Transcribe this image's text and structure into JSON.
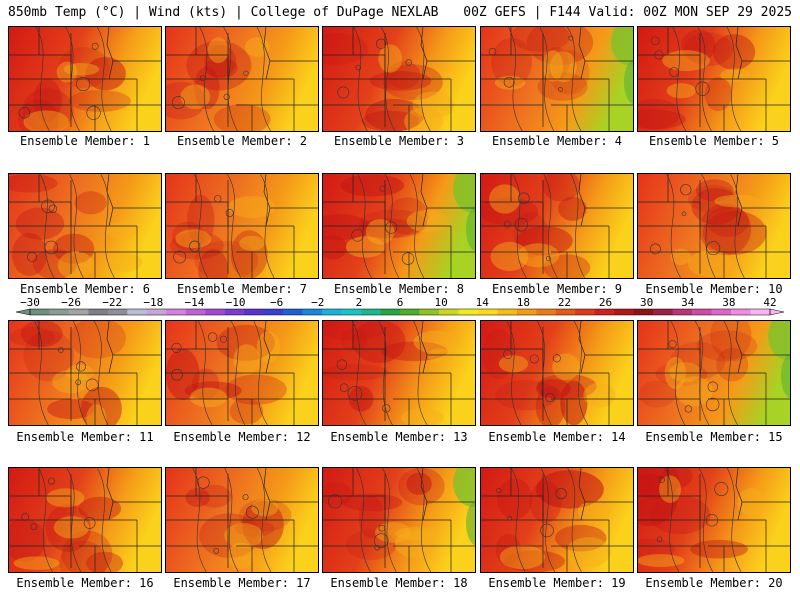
{
  "header": {
    "left": "850mb Temp (°C) | Wind (kts) | College of DuPage NEXLAB",
    "right": "00Z GEFS | F144 Valid: 00Z MON SEP 29 2025"
  },
  "members": [
    {
      "label": "Ensemble Member: 1",
      "warm": 0.85,
      "cool_east": 0.1
    },
    {
      "label": "Ensemble Member: 2",
      "warm": 0.8,
      "cool_east": 0.2
    },
    {
      "label": "Ensemble Member: 3",
      "warm": 0.85,
      "cool_east": 0.15
    },
    {
      "label": "Ensemble Member: 4",
      "warm": 0.55,
      "cool_east": 0.8
    },
    {
      "label": "Ensemble Member: 5",
      "warm": 0.9,
      "cool_east": 0.2
    },
    {
      "label": "Ensemble Member: 6",
      "warm": 0.75,
      "cool_east": 0.3
    },
    {
      "label": "Ensemble Member: 7",
      "warm": 0.65,
      "cool_east": 0.45
    },
    {
      "label": "Ensemble Member: 8",
      "warm": 0.9,
      "cool_east": 0.75
    },
    {
      "label": "Ensemble Member: 9",
      "warm": 0.85,
      "cool_east": 0.3
    },
    {
      "label": "Ensemble Member: 10",
      "warm": 0.7,
      "cool_east": 0.4
    },
    {
      "label": "Ensemble Member: 11",
      "warm": 0.8,
      "cool_east": 0.4
    },
    {
      "label": "Ensemble Member: 12",
      "warm": 0.8,
      "cool_east": 0.35
    },
    {
      "label": "Ensemble Member: 13",
      "warm": 0.85,
      "cool_east": 0.35
    },
    {
      "label": "Ensemble Member: 14",
      "warm": 0.9,
      "cool_east": 0.3
    },
    {
      "label": "Ensemble Member: 15",
      "warm": 0.7,
      "cool_east": 0.85
    },
    {
      "label": "Ensemble Member: 16",
      "warm": 0.85,
      "cool_east": 0.3
    },
    {
      "label": "Ensemble Member: 17",
      "warm": 0.8,
      "cool_east": 0.3
    },
    {
      "label": "Ensemble Member: 18",
      "warm": 0.9,
      "cool_east": 0.6
    },
    {
      "label": "Ensemble Member: 19",
      "warm": 0.95,
      "cool_east": 0.15
    },
    {
      "label": "Ensemble Member: 20",
      "warm": 0.95,
      "cool_east": 0.1
    }
  ],
  "colorbar": {
    "tick_labels": [
      "−30",
      "−26",
      "−22",
      "−18",
      "−14",
      "−10",
      "−6",
      "−2",
      "2",
      "6",
      "10",
      "14",
      "18",
      "22",
      "26",
      "30",
      "34",
      "38",
      "42"
    ],
    "colors": [
      "#6f8f7f",
      "#8d9b94",
      "#a3a3a3",
      "#7f7f87",
      "#8e8e98",
      "#b9bdd8",
      "#c9a4d9",
      "#d67fe0",
      "#c35fd6",
      "#a347d3",
      "#7c3bd0",
      "#5a32cc",
      "#3b3fd1",
      "#1f5fd6",
      "#1a86d9",
      "#18b2de",
      "#19c4c9",
      "#1bb88a",
      "#27a544",
      "#4fae27",
      "#8fc321",
      "#c9d81f",
      "#f0ec1c",
      "#fddb1b",
      "#fbbb16",
      "#f59a14",
      "#ee7a14",
      "#e65718",
      "#dd3a1c",
      "#cf1f1f",
      "#b01818",
      "#8e1313",
      "#9c1f45",
      "#b83474",
      "#cf4aa2",
      "#e165c6",
      "#f18ae0",
      "#f8b5ee"
    ]
  }
}
